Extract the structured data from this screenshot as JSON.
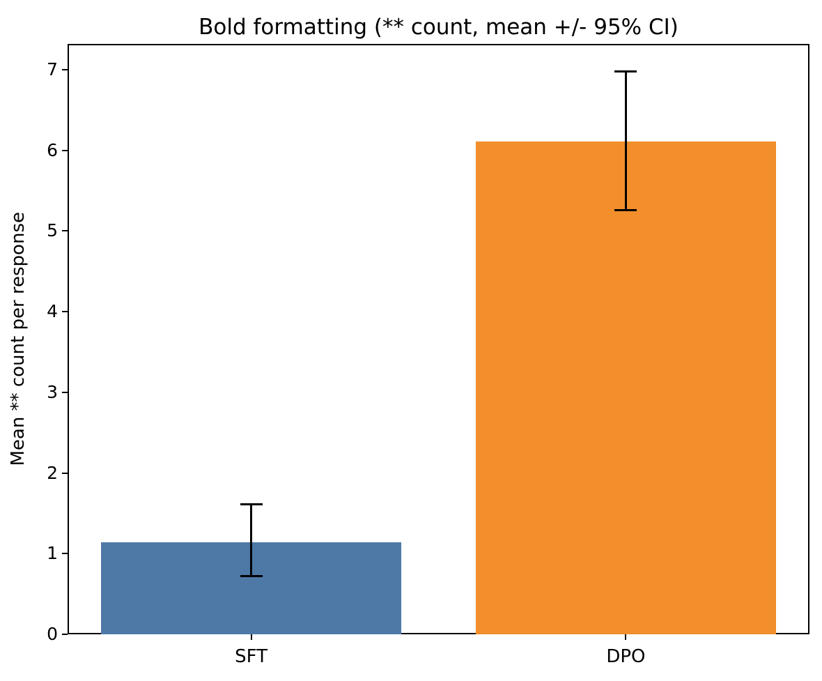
{
  "chart_data": {
    "type": "bar",
    "title": "Bold formatting (** count, mean +/- 95% CI)",
    "xlabel": "",
    "ylabel": "Mean ** count per response",
    "categories": [
      "SFT",
      "DPO"
    ],
    "values": [
      1.14,
      6.11
    ],
    "ci_low": [
      0.72,
      5.26
    ],
    "ci_high": [
      1.61,
      6.98
    ],
    "bar_colors": [
      "#4e79a7",
      "#f28e2b"
    ],
    "error_bar_color": "#000000",
    "yticks": [
      0,
      1,
      2,
      3,
      4,
      5,
      6,
      7
    ],
    "ylim": [
      0,
      7.32
    ],
    "xlim": [
      -0.49,
      1.49
    ],
    "bar_width": 0.8,
    "grid": false,
    "legend": null
  }
}
